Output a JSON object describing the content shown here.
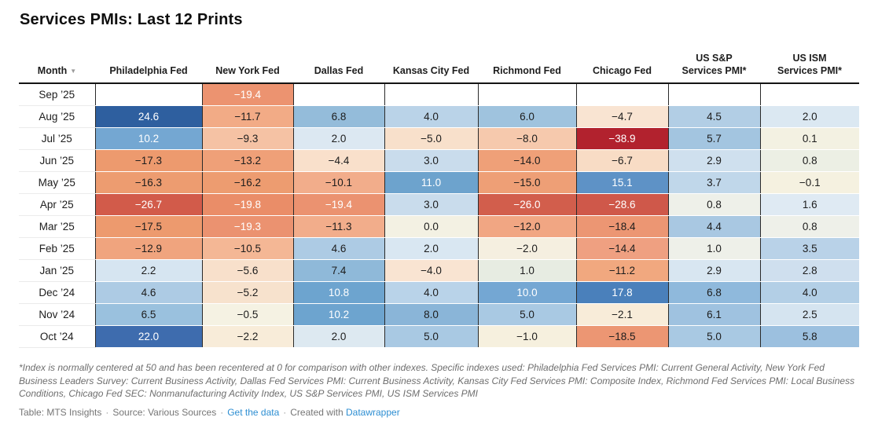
{
  "page": {
    "title": "Services PMIs: Last 12 Prints"
  },
  "chart_data": {
    "type": "heatmap",
    "title": "Services PMIs: Last 12 Prints",
    "columns": [
      "Month",
      "Philadelphia Fed",
      "New York Fed",
      "Dallas Fed",
      "Kansas City Fed",
      "Richmond Fed",
      "Chicago Fed",
      "US S&P Services PMI*",
      "US ISM Services PMI*"
    ],
    "rows": [
      {
        "month": "Sep ’25",
        "values": [
          null,
          -19.4,
          null,
          null,
          null,
          null,
          null,
          null
        ]
      },
      {
        "month": "Aug ’25",
        "values": [
          24.6,
          -11.7,
          6.8,
          4.0,
          6.0,
          -4.7,
          4.5,
          2.0
        ]
      },
      {
        "month": "Jul ’25",
        "values": [
          10.2,
          -9.3,
          2.0,
          -5.0,
          -8.0,
          -38.9,
          5.7,
          0.1
        ]
      },
      {
        "month": "Jun ’25",
        "values": [
          -17.3,
          -13.2,
          -4.4,
          3.0,
          -14.0,
          -6.7,
          2.9,
          0.8
        ]
      },
      {
        "month": "May ’25",
        "values": [
          -16.3,
          -16.2,
          -10.1,
          11.0,
          -15.0,
          15.1,
          3.7,
          -0.1
        ]
      },
      {
        "month": "Apr ’25",
        "values": [
          -26.7,
          -19.8,
          -19.4,
          3.0,
          -26.0,
          -28.6,
          0.8,
          1.6
        ]
      },
      {
        "month": "Mar ’25",
        "values": [
          -17.5,
          -19.3,
          -11.3,
          0.0,
          -12.0,
          -18.4,
          4.4,
          0.8
        ]
      },
      {
        "month": "Feb ’25",
        "values": [
          -12.9,
          -10.5,
          4.6,
          2.0,
          -2.0,
          -14.4,
          1.0,
          3.5
        ]
      },
      {
        "month": "Jan ’25",
        "values": [
          2.2,
          -5.6,
          7.4,
          -4.0,
          1.0,
          -11.2,
          2.9,
          2.8
        ]
      },
      {
        "month": "Dec ’24",
        "values": [
          4.6,
          -5.2,
          10.8,
          4.0,
          10.0,
          17.8,
          6.8,
          4.0
        ]
      },
      {
        "month": "Nov ’24",
        "values": [
          6.5,
          -0.5,
          10.2,
          8.0,
          5.0,
          -2.1,
          6.1,
          2.5
        ]
      },
      {
        "month": "Oct ’24",
        "values": [
          22.0,
          -2.2,
          2.0,
          5.0,
          -1.0,
          -18.5,
          5.0,
          5.8
        ]
      }
    ],
    "color_scale": {
      "negative": "#b2222e",
      "neutral": "#f3f1e3",
      "positive": "#2e5f9f"
    }
  },
  "table": {
    "columns": [
      {
        "label": "Month",
        "sortable": true
      },
      {
        "label": "Philadelphia Fed"
      },
      {
        "label": "New York Fed"
      },
      {
        "label": "Dallas Fed"
      },
      {
        "label": "Kansas City Fed"
      },
      {
        "label": "Richmond Fed"
      },
      {
        "label": "Chicago Fed"
      },
      {
        "label": "US S&P\nServices PMI*"
      },
      {
        "label": "US ISM\nServices PMI*"
      }
    ],
    "rows": [
      {
        "month": "Sep ’25",
        "cells": [
          {
            "t": "",
            "bg": "#ffffff"
          },
          {
            "t": "−19.4",
            "bg": "#ec9370",
            "fg": "#ffffff"
          },
          {
            "t": "",
            "bg": "#ffffff"
          },
          {
            "t": "",
            "bg": "#ffffff"
          },
          {
            "t": "",
            "bg": "#ffffff"
          },
          {
            "t": "",
            "bg": "#ffffff"
          },
          {
            "t": "",
            "bg": "#ffffff"
          },
          {
            "t": "",
            "bg": "#ffffff"
          }
        ]
      },
      {
        "month": "Aug ’25",
        "cells": [
          {
            "t": "24.6",
            "bg": "#2e5f9f",
            "fg": "#ffffff"
          },
          {
            "t": "−11.7",
            "bg": "#f2ab86"
          },
          {
            "t": "6.8",
            "bg": "#94bcda"
          },
          {
            "t": "4.0",
            "bg": "#bad3e8"
          },
          {
            "t": "6.0",
            "bg": "#9fc3de"
          },
          {
            "t": "−4.7",
            "bg": "#f9e4d2"
          },
          {
            "t": "4.5",
            "bg": "#b2cee5"
          },
          {
            "t": "2.0",
            "bg": "#dbe8f2"
          }
        ]
      },
      {
        "month": "Jul ’25",
        "cells": [
          {
            "t": "10.2",
            "bg": "#74a7d2",
            "fg": "#ffffff"
          },
          {
            "t": "−9.3",
            "bg": "#f5c2a4"
          },
          {
            "t": "2.0",
            "bg": "#dce8f2"
          },
          {
            "t": "−5.0",
            "bg": "#f8e0cb"
          },
          {
            "t": "−8.0",
            "bg": "#f6c9ad"
          },
          {
            "t": "−38.9",
            "bg": "#b2222e",
            "fg": "#ffffff"
          },
          {
            "t": "5.7",
            "bg": "#a3c5e0"
          },
          {
            "t": "0.1",
            "bg": "#f3f1e2"
          }
        ]
      },
      {
        "month": "Jun ’25",
        "cells": [
          {
            "t": "−17.3",
            "bg": "#ed9a6e"
          },
          {
            "t": "−13.2",
            "bg": "#efa078"
          },
          {
            "t": "−4.4",
            "bg": "#f9e0cb"
          },
          {
            "t": "3.0",
            "bg": "#c9dcec"
          },
          {
            "t": "−14.0",
            "bg": "#efa078"
          },
          {
            "t": "−6.7",
            "bg": "#f8dcc5"
          },
          {
            "t": "2.9",
            "bg": "#cfe0ee"
          },
          {
            "t": "0.8",
            "bg": "#ecefe4"
          }
        ]
      },
      {
        "month": "May ’25",
        "cells": [
          {
            "t": "−16.3",
            "bg": "#ed9c70"
          },
          {
            "t": "−16.2",
            "bg": "#ed9c70"
          },
          {
            "t": "−10.1",
            "bg": "#f2ad8b"
          },
          {
            "t": "11.0",
            "bg": "#6da3cd",
            "fg": "#ffffff"
          },
          {
            "t": "−15.0",
            "bg": "#ee9f76"
          },
          {
            "t": "15.1",
            "bg": "#5e92c6",
            "fg": "#ffffff"
          },
          {
            "t": "3.7",
            "bg": "#c0d7ea"
          },
          {
            "t": "−0.1",
            "bg": "#f5f1e0"
          }
        ]
      },
      {
        "month": "Apr ’25",
        "cells": [
          {
            "t": "−26.7",
            "bg": "#d25b4a",
            "fg": "#ffffff"
          },
          {
            "t": "−19.8",
            "bg": "#ea8d68",
            "fg": "#ffffff"
          },
          {
            "t": "−19.4",
            "bg": "#eb9270",
            "fg": "#ffffff"
          },
          {
            "t": "3.0",
            "bg": "#c9dcec"
          },
          {
            "t": "−26.0",
            "bg": "#d25e4c",
            "fg": "#ffffff"
          },
          {
            "t": "−28.6",
            "bg": "#cf584a",
            "fg": "#ffffff"
          },
          {
            "t": "0.8",
            "bg": "#eef0e9"
          },
          {
            "t": "1.6",
            "bg": "#dfeaf3"
          }
        ]
      },
      {
        "month": "Mar ’25",
        "cells": [
          {
            "t": "−17.5",
            "bg": "#ed9a6e"
          },
          {
            "t": "−19.3",
            "bg": "#eb9270",
            "fg": "#ffffff"
          },
          {
            "t": "−11.3",
            "bg": "#f2ad8b"
          },
          {
            "t": "0.0",
            "bg": "#f3f1e3"
          },
          {
            "t": "−12.0",
            "bg": "#f1a683"
          },
          {
            "t": "−18.4",
            "bg": "#ec9673"
          },
          {
            "t": "4.4",
            "bg": "#a9c8e2"
          },
          {
            "t": "0.8",
            "bg": "#eef0e9"
          }
        ]
      },
      {
        "month": "Feb ’25",
        "cells": [
          {
            "t": "−12.9",
            "bg": "#f0a47e"
          },
          {
            "t": "−10.5",
            "bg": "#f4b795"
          },
          {
            "t": "4.6",
            "bg": "#adcbe4"
          },
          {
            "t": "2.0",
            "bg": "#d9e7f2"
          },
          {
            "t": "−2.0",
            "bg": "#f5efe0"
          },
          {
            "t": "−14.4",
            "bg": "#efa081"
          },
          {
            "t": "1.0",
            "bg": "#eef0e9"
          },
          {
            "t": "3.5",
            "bg": "#b9d2e8"
          }
        ]
      },
      {
        "month": "Jan ’25",
        "cells": [
          {
            "t": "2.2",
            "bg": "#d6e5f1"
          },
          {
            "t": "−5.6",
            "bg": "#f8e0cb"
          },
          {
            "t": "7.4",
            "bg": "#8fb9d9"
          },
          {
            "t": "−4.0",
            "bg": "#f9e4d2"
          },
          {
            "t": "1.0",
            "bg": "#e7ece2"
          },
          {
            "t": "−11.2",
            "bg": "#f1a87f"
          },
          {
            "t": "2.9",
            "bg": "#d8e6f1"
          },
          {
            "t": "2.8",
            "bg": "#cfdfee"
          }
        ]
      },
      {
        "month": "Dec ’24",
        "cells": [
          {
            "t": "4.6",
            "bg": "#adcbe4"
          },
          {
            "t": "−5.2",
            "bg": "#f7e2cd"
          },
          {
            "t": "10.8",
            "bg": "#6da4cf",
            "fg": "#ffffff"
          },
          {
            "t": "4.0",
            "bg": "#b9d3e9"
          },
          {
            "t": "10.0",
            "bg": "#74a7d3",
            "fg": "#ffffff"
          },
          {
            "t": "17.8",
            "bg": "#4a80bb",
            "fg": "#ffffff"
          },
          {
            "t": "6.8",
            "bg": "#8fb9dc"
          },
          {
            "t": "4.0",
            "bg": "#b3cfe6"
          }
        ]
      },
      {
        "month": "Nov ’24",
        "cells": [
          {
            "t": "6.5",
            "bg": "#9ac1de"
          },
          {
            "t": "−0.5",
            "bg": "#f5f2e3"
          },
          {
            "t": "10.2",
            "bg": "#6da4cf",
            "fg": "#ffffff"
          },
          {
            "t": "8.0",
            "bg": "#8ab5d8"
          },
          {
            "t": "5.0",
            "bg": "#a9c9e3"
          },
          {
            "t": "−2.1",
            "bg": "#f8ecd9"
          },
          {
            "t": "6.1",
            "bg": "#9fc2e0"
          },
          {
            "t": "2.5",
            "bg": "#d5e4f0"
          }
        ]
      },
      {
        "month": "Oct ’24",
        "cells": [
          {
            "t": "22.0",
            "bg": "#3e6cae",
            "fg": "#ffffff"
          },
          {
            "t": "−2.2",
            "bg": "#f8ecd9"
          },
          {
            "t": "2.0",
            "bg": "#dde9f1"
          },
          {
            "t": "5.0",
            "bg": "#a9c9e3"
          },
          {
            "t": "−1.0",
            "bg": "#f6f0de"
          },
          {
            "t": "−18.5",
            "bg": "#ec9673"
          },
          {
            "t": "5.0",
            "bg": "#a9c9e3"
          },
          {
            "t": "5.8",
            "bg": "#9cc0df"
          }
        ]
      }
    ]
  },
  "notes": "*Index is normally centered at 50 and has been recentered at 0 for comparison with other indexes. Specific indexes used: Philadelphia Fed Services PMI: Current General Activity, New York Fed Business Leaders Survey: Current Business Activity, Dallas Fed Services PMI: Current Business Activity, Kansas City Fed Services PMI: Composite Index, Richmond Fed Services PMI: Local Business Conditions, Chicago Fed SEC: Nonmanufacturing Activity Index, US S&P Services PMI, US ISM Services PMI",
  "footer": {
    "table_credit": "Table: MTS Insights",
    "source": "Source: Various Sources",
    "get_data_label": "Get the data",
    "created_with": "Created with",
    "tool_label": "Datawrapper",
    "separator": "·"
  },
  "icons": {
    "sort_descending": "▼"
  },
  "colors": {
    "link": "#2d8ed2",
    "header_rule": "#141414",
    "column_divider": "#2a2a2a",
    "max_positive": "#2e5f9f",
    "max_negative": "#b2222e"
  }
}
